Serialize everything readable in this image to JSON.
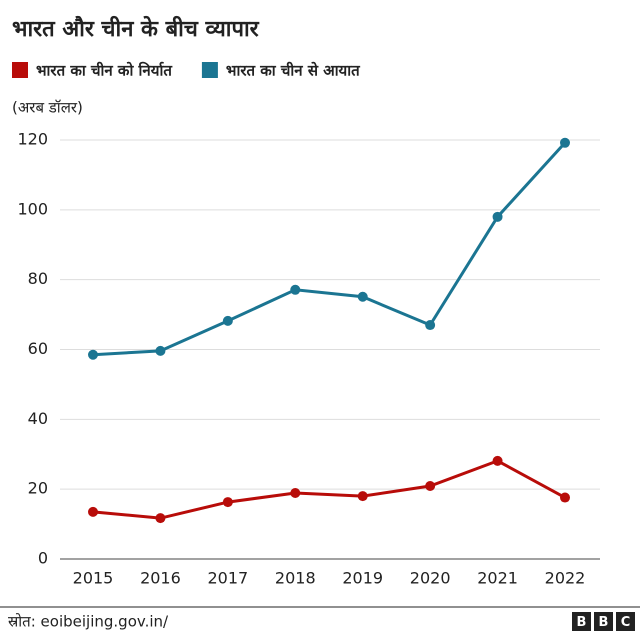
{
  "chart_data": {
    "type": "line",
    "title": "भारत और चीन के बीच व्यापार",
    "y_label": "(अरब डॉलर)",
    "source": "स्रोत: eoibeijing.gov.in/",
    "logo": [
      "B",
      "B",
      "C"
    ],
    "categories": [
      "2015",
      "2016",
      "2017",
      "2018",
      "2019",
      "2020",
      "2021",
      "2022"
    ],
    "series": [
      {
        "name": "भारत का चीन को निर्यात",
        "color": "#b80c09",
        "values": [
          13.5,
          11.7,
          16.3,
          18.9,
          18.0,
          20.9,
          28.1,
          17.6
        ]
      },
      {
        "name": "भारत का चीन से आयात",
        "color": "#1b7592",
        "values": [
          58.5,
          59.6,
          68.2,
          77.1,
          75.1,
          67.0,
          98.0,
          119.2
        ]
      }
    ],
    "ylim": [
      0,
      120
    ],
    "yticks": [
      0,
      20,
      40,
      60,
      80,
      100,
      120
    ],
    "grid": true
  }
}
